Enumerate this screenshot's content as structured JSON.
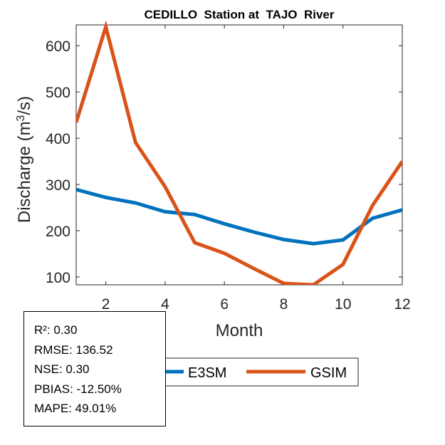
{
  "chart_data": {
    "type": "line",
    "title": "CEDILLO  Station at  TAJO  River",
    "xlabel": "Month",
    "ylabel": "Discharge (m³/s)",
    "ylabel_parts": {
      "main": "Discharge (m",
      "sup": "3",
      "tail": "/s)"
    },
    "xlim": [
      1,
      12
    ],
    "ylim": [
      83,
      645
    ],
    "xticks": [
      2,
      4,
      6,
      8,
      10,
      12
    ],
    "yticks": [
      100,
      200,
      300,
      400,
      500,
      600
    ],
    "grid": false,
    "x": [
      1,
      2,
      3,
      4,
      5,
      6,
      7,
      8,
      9,
      10,
      11,
      12
    ],
    "series": [
      {
        "name": "E3SM",
        "color": "#0072BD",
        "values": [
          289,
          272,
          260,
          241,
          235,
          215,
          197,
          181,
          172,
          180,
          227,
          245
        ]
      },
      {
        "name": "GSIM",
        "color": "#D95319",
        "values": [
          434,
          641,
          391,
          295,
          174,
          151,
          118,
          86,
          83,
          127,
          255,
          350
        ]
      }
    ],
    "legend": {
      "placement": "bottom-outside",
      "entries": [
        "E3SM",
        "GSIM"
      ]
    }
  },
  "stats": [
    "R²: 0.30",
    "RMSE: 136.52",
    "NSE: 0.30",
    "PBIAS: -12.50%",
    "MAPE: 49.01%"
  ]
}
